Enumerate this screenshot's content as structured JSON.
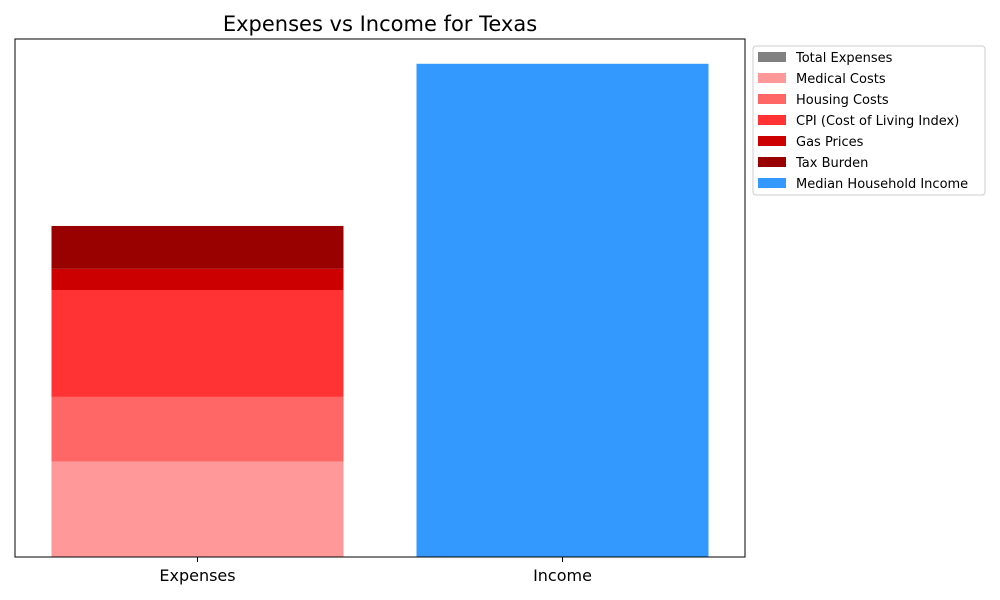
{
  "chart_data": {
    "type": "bar",
    "stacked": true,
    "title": "Expenses vs Income for Texas",
    "xlabel": "",
    "ylabel": "",
    "categories": [
      "Expenses",
      "Income"
    ],
    "y_ticks_visible": false,
    "grid": false,
    "legend_position": "outside-top-right",
    "series": [
      {
        "name": "Total Expenses",
        "color": "#808080",
        "values": [
          0,
          0
        ]
      },
      {
        "name": "Medical Costs",
        "color": "#ff9999",
        "values": [
          18.5,
          0
        ]
      },
      {
        "name": "Housing Costs",
        "color": "#ff6666",
        "values": [
          12.5,
          0
        ]
      },
      {
        "name": "CPI (Cost of Living Index)",
        "color": "#ff3333",
        "values": [
          20.7,
          0
        ]
      },
      {
        "name": "Gas Prices",
        "color": "#cc0000",
        "values": [
          4.1,
          0
        ]
      },
      {
        "name": "Tax Burden",
        "color": "#990000",
        "values": [
          8.3,
          0
        ]
      },
      {
        "name": "Median Household Income",
        "color": "#3399ff",
        "values": [
          0,
          95.5
        ]
      }
    ],
    "ylim": [
      0,
      100.3
    ]
  }
}
